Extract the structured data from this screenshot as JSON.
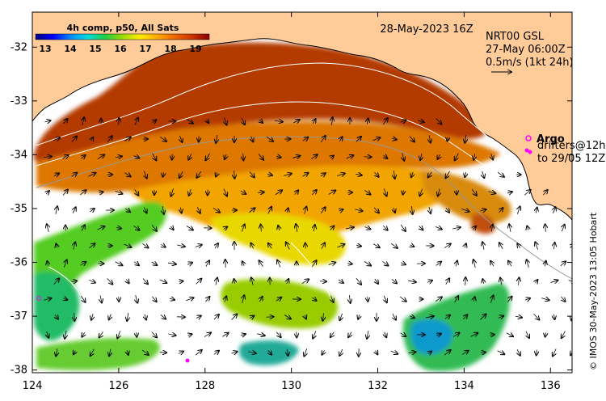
{
  "title_date": "28-May-2023 16Z",
  "colorbar": {
    "label": "4h comp, p50, All Sats",
    "ticks": [
      "13",
      "14",
      "15",
      "16",
      "17",
      "18",
      "19"
    ],
    "stops": [
      "#00007f",
      "#0000ff",
      "#0088ff",
      "#00dddd",
      "#22cc44",
      "#99dd00",
      "#ffee00",
      "#ffaa00",
      "#ee6600",
      "#cc3300",
      "#880000"
    ]
  },
  "legend": {
    "line1": "NRT00 GSL",
    "line2": "27-May 06:00Z",
    "line3": "0.5m/s (1kt 24h)"
  },
  "argo": {
    "label": "Argo",
    "drifters_line1": "drifters@12h",
    "drifters_line2": "to 29/05 12Z"
  },
  "credit": "© IMOS 30-May-2023 13:05 Hobart",
  "axes": {
    "x_ticks": [
      "124",
      "126",
      "128",
      "130",
      "132",
      "134",
      "136"
    ],
    "y_ticks": [
      "-32",
      "-33",
      "-34",
      "-35",
      "-36",
      "-37",
      "-38"
    ],
    "xlim": [
      124,
      136.5
    ],
    "ylim": [
      -38.05,
      -31.35
    ]
  },
  "colors": {
    "land": "#ffcc99",
    "ocean_nodata": "#ffffff",
    "argo": "#ff00ff"
  }
}
